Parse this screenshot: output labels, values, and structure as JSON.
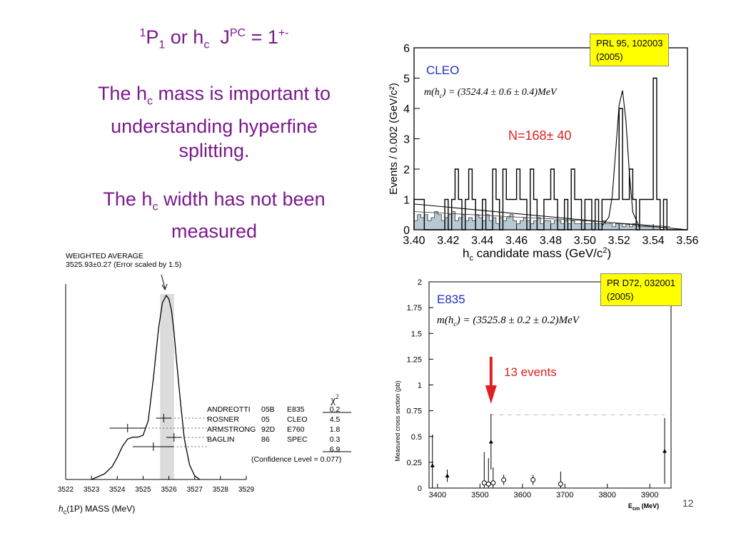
{
  "slide": {
    "title_line1": {
      "base": "P",
      "pre_sup": "1",
      "sub": "1",
      "mid": " or h",
      "sub2": "c",
      "j": "  J",
      "j_sup": "PC",
      "eq": " = 1",
      "eq_sup": "+-"
    },
    "para1": {
      "a": "The h",
      "sub": "c",
      "b": " mass is important to",
      "c": "understanding hyperfine",
      "d": "splitting."
    },
    "para2": {
      "a": "The h",
      "sub": "c",
      "b": " width has not been",
      "c": "measured"
    },
    "page_number": "12"
  },
  "colors": {
    "title": "#7a1a8c",
    "badge": "#ffff00",
    "cleo_label": "#1f2fbf",
    "n_label": "#e02020",
    "arrow": "#e02020",
    "band": "#dcdcdc",
    "hist_fill": "#b7c9d3"
  },
  "chart_data": [
    {
      "type": "line",
      "id": "pdg_ideogram",
      "header1": "WEIGHTED AVERAGE",
      "header2": "3525.93±0.27 (Error scaled by 1.5)",
      "xlabel": "h_c(1P) MASS (MeV)",
      "xlabel_pre": "h",
      "xlabel_sub": "c",
      "xlabel_post": "(1P) MASS (MeV)",
      "xlim": [
        3522,
        3529
      ],
      "xticks": [
        "3522",
        "3523",
        "3524",
        "3525",
        "3526",
        "3527",
        "3528",
        "3529"
      ],
      "average": 3525.93,
      "average_error": 0.27,
      "curve": {
        "x": [
          3523.0,
          3523.5,
          3523.8,
          3524.0,
          3524.2,
          3524.4,
          3524.6,
          3524.8,
          3525.0,
          3525.2,
          3525.4,
          3525.6,
          3525.75,
          3525.9,
          3526.0,
          3526.1,
          3526.2,
          3526.3,
          3526.45,
          3526.6,
          3526.8,
          3527.0,
          3527.2
        ],
        "y": [
          0.0,
          0.03,
          0.07,
          0.12,
          0.18,
          0.22,
          0.23,
          0.23,
          0.24,
          0.32,
          0.55,
          0.82,
          0.96,
          1.0,
          0.98,
          0.92,
          0.8,
          0.64,
          0.42,
          0.22,
          0.08,
          0.02,
          0.0
        ]
      },
      "measurements": [
        {
          "name": "ANDREOTTI",
          "year": "05B",
          "experiment": "E835",
          "chi2": "0.2",
          "value": 3525.8,
          "error": 0.3
        },
        {
          "name": "ROSNER",
          "year": "05",
          "experiment": "CLEO",
          "chi2": "4.5",
          "value": 3524.4,
          "error": 0.7
        },
        {
          "name": "ARMSTRONG",
          "year": "92D",
          "experiment": "E760",
          "chi2": "1.8",
          "value": 3526.2,
          "error": 0.3
        },
        {
          "name": "BAGLIN",
          "year": "86",
          "experiment": "SPEC",
          "chi2": "0.3",
          "value": 3525.4,
          "error": 0.8
        }
      ],
      "chi2_header": "χ",
      "chi2_header_sup": "2",
      "chi2_total": "6.9",
      "confidence": "(Confidence Level = 0.077)"
    },
    {
      "type": "bar",
      "id": "cleo_hist",
      "label": "CLEO",
      "formula": "m(h_c) = (3524.4 ± 0.6 ± 0.4)MeV",
      "formula_parts": {
        "m": "m(h",
        "c": "c",
        "rest": ") = (3524.4 ± 0.6 ± 0.4)MeV"
      },
      "signal_text": "N=168± 40",
      "badge_line1": "PRL 95, 102003",
      "badge_line2": "(2005)",
      "ylabel": "Events / 0.002 (GeV/c²)",
      "xlabel": "h_c candidate mass (GeV/c²)",
      "xlabel_parts": {
        "a": "h",
        "sub": "c",
        "b": " candidate mass (GeV/c",
        "sup": "2",
        "c": ")"
      },
      "xlim": [
        3.4,
        3.56
      ],
      "ylim": [
        0,
        6
      ],
      "xticks": [
        "3.40",
        "3.42",
        "3.44",
        "3.46",
        "3.48",
        "3.50",
        "3.52",
        "3.54",
        "3.56"
      ],
      "yticks": [
        "0",
        "1",
        "2",
        "3",
        "4",
        "5",
        "6"
      ],
      "bin_width": 0.002,
      "signal_counts": [
        1,
        1,
        1,
        0,
        0,
        0,
        0,
        0,
        0,
        1,
        0,
        1,
        2,
        1,
        0,
        1,
        2,
        1,
        0,
        0,
        1,
        0,
        0,
        2,
        1,
        0,
        2,
        1,
        1,
        1,
        2,
        1,
        1,
        0,
        2,
        1,
        0,
        0,
        1,
        1,
        2,
        1,
        0,
        0,
        1,
        0,
        2,
        1,
        1,
        0,
        1,
        1,
        0,
        1,
        0,
        1,
        1,
        1,
        1,
        1,
        4,
        1,
        1,
        2,
        1,
        0,
        1,
        1,
        1,
        1,
        5,
        1,
        0,
        1,
        0,
        0,
        0,
        0,
        0,
        0
      ],
      "bg_counts": [
        0.3,
        0.5,
        0.4,
        0.5,
        0.3,
        0.4,
        0.6,
        0.5,
        0.3,
        0.4,
        0.5,
        0.6,
        0.3,
        0.4,
        0.5,
        0.3,
        0.4,
        0.3,
        0.5,
        0.4,
        0.3,
        0.5,
        0.3,
        0.4,
        0.2,
        0.4,
        0.3,
        0.4,
        0.5,
        0.3,
        0.2,
        0.3,
        0.4,
        0.3,
        0.2,
        0.3,
        0.4,
        0.2,
        0.3,
        0.3,
        0.2,
        0.3,
        0.3,
        0.2,
        0.3,
        0.2,
        0.3,
        0.2,
        0.2,
        0.3,
        0.2,
        0.2,
        0.3,
        0.2,
        0.2,
        0.3,
        0.2,
        0.2,
        0.1,
        0.2,
        0.2,
        0.1,
        0.2,
        0.1,
        0.2,
        0.1,
        0.1,
        0.1,
        0.1,
        0.1,
        0.1,
        0.1,
        0.0,
        0.1,
        0.0,
        0.0,
        0.0,
        0.0,
        0.0,
        0.0
      ],
      "peak": {
        "x": [
          3.51,
          3.514,
          3.516,
          3.518,
          3.52,
          3.522,
          3.524,
          3.526,
          3.528,
          3.532
        ],
        "y": [
          0.0,
          0.3,
          1.0,
          2.5,
          4.0,
          4.5,
          3.5,
          1.8,
          0.5,
          0.0
        ]
      },
      "bg_line": {
        "x": [
          3.4,
          3.56
        ],
        "y": [
          0.85,
          0.0
        ]
      },
      "bg_curve": {
        "x": [
          3.4,
          3.45,
          3.5,
          3.55
        ],
        "y": [
          0.6,
          0.45,
          0.3,
          0.1
        ]
      }
    },
    {
      "type": "scatter",
      "id": "e835_xsec",
      "label": "E835",
      "formula_parts": {
        "m": "m(h",
        "c": "c",
        "rest": ") = (3525.8 ± 0.2 ± 0.2)MeV"
      },
      "badge_line1": "PR D72, 032001",
      "badge_line2": "(2005)",
      "arrow_text": "13 events",
      "ylabel": "Measured cross section (pb)",
      "xlabel_pre": "E",
      "xlabel_sub": "cm",
      "xlabel_post": " (MeV)",
      "xlim": [
        3380,
        3950
      ],
      "ylim": [
        0,
        2
      ],
      "xticks": [
        "3400",
        "3500",
        "3600",
        "3700",
        "3800",
        "3900"
      ],
      "xtick_values": [
        3400,
        3500,
        3600,
        3700,
        3800,
        3900
      ],
      "yticks": [
        "0",
        "0.25",
        "0.5",
        "0.75",
        "1",
        "1.25",
        "1.5",
        "1.75",
        "2"
      ],
      "ytick_values": [
        0,
        0.25,
        0.5,
        0.75,
        1,
        1.25,
        1.5,
        1.75,
        2
      ],
      "points": [
        {
          "x": 3388,
          "y": 0.22,
          "err": 0.3,
          "marker": "triangle"
        },
        {
          "x": 3423,
          "y": 0.12,
          "err": 0.06,
          "marker": "triangle"
        },
        {
          "x": 3510,
          "y": 0.05,
          "err": 0.3,
          "marker": "circle"
        },
        {
          "x": 3520,
          "y": 0.04,
          "err": 0.25,
          "marker": "circle"
        },
        {
          "x": 3526,
          "y": 0.45,
          "err": 0.27,
          "marker": "triangle"
        },
        {
          "x": 3531,
          "y": 0.05,
          "err": 0.15,
          "marker": "circle"
        },
        {
          "x": 3556,
          "y": 0.08,
          "err": 0.05,
          "marker": "circle"
        },
        {
          "x": 3625,
          "y": 0.08,
          "err": 0.05,
          "marker": "circle"
        },
        {
          "x": 3690,
          "y": 0.04,
          "err": 0.12,
          "marker": "circle"
        },
        {
          "x": 3935,
          "y": 0.36,
          "err": 0.32,
          "marker": "triangle"
        }
      ],
      "dashed_level": 0.71
    }
  ]
}
